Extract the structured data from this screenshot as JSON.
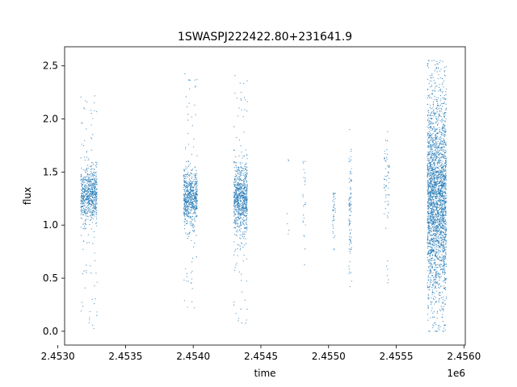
{
  "chart_data": {
    "type": "scatter",
    "title": "1SWASPJ222422.80+231641.9",
    "xlabel": "time",
    "ylabel": "flux",
    "x_offset_label": "1e6",
    "xlim": [
      2.45305,
      2.45601
    ],
    "ylim": [
      -0.13,
      2.68
    ],
    "x_ticks": [
      2.453,
      2.4535,
      2.454,
      2.4545,
      2.455,
      2.4555,
      2.456
    ],
    "x_tick_labels": [
      "2.4530",
      "2.4535",
      "2.4540",
      "2.4545",
      "2.4550",
      "2.4555",
      "2.4560"
    ],
    "y_ticks": [
      0.0,
      0.5,
      1.0,
      1.5,
      2.0,
      2.5
    ],
    "y_tick_labels": [
      "0.0",
      "0.5",
      "1.0",
      "1.5",
      "2.0",
      "2.5"
    ],
    "grid": false,
    "legend": "none",
    "marker_color": "#1f77b4",
    "series": [
      {
        "clusters": [
          {
            "x_center": 2.45323,
            "x_width": 0.00012,
            "y_center": 1.28,
            "y_spread": 0.13,
            "y_min": 0.0,
            "y_max": 2.25,
            "count": 700
          },
          {
            "x_center": 2.45398,
            "x_width": 0.0001,
            "y_center": 1.26,
            "y_spread": 0.13,
            "y_min": 0.18,
            "y_max": 2.43,
            "count": 650
          },
          {
            "x_center": 2.45435,
            "x_width": 0.0001,
            "y_center": 1.25,
            "y_spread": 0.16,
            "y_min": 0.05,
            "y_max": 2.41,
            "count": 800
          },
          {
            "x_center": 2.4547,
            "x_width": 2e-05,
            "y_center": 1.2,
            "y_spread": 0.25,
            "y_min": 0.9,
            "y_max": 1.8,
            "count": 6
          },
          {
            "x_center": 2.45482,
            "x_width": 2e-05,
            "y_center": 1.15,
            "y_spread": 0.25,
            "y_min": 0.55,
            "y_max": 1.6,
            "count": 25
          },
          {
            "x_center": 2.45504,
            "x_width": 2e-05,
            "y_center": 1.13,
            "y_spread": 0.15,
            "y_min": 0.7,
            "y_max": 1.3,
            "count": 40
          },
          {
            "x_center": 2.45516,
            "x_width": 2e-05,
            "y_center": 1.1,
            "y_spread": 0.3,
            "y_min": 0.42,
            "y_max": 1.9,
            "count": 90
          },
          {
            "x_center": 2.45543,
            "x_width": 4e-05,
            "y_center": 1.45,
            "y_spread": 0.2,
            "y_min": 0.35,
            "y_max": 1.88,
            "count": 60
          },
          {
            "x_center": 2.4558,
            "x_width": 0.00014,
            "y_center": 1.25,
            "y_spread": 0.45,
            "y_min": 0.0,
            "y_max": 2.55,
            "count": 2600
          }
        ]
      }
    ]
  }
}
